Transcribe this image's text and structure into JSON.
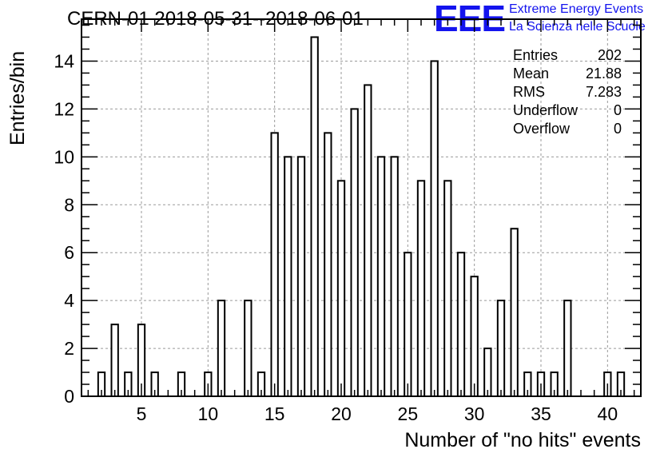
{
  "chart_data": {
    "type": "bar",
    "title": "CERN-01 2018-05-31--2018-06-01",
    "xlabel": "Number of \"no hits\" events",
    "ylabel": "Entries/bin",
    "xlim": [
      0.5,
      42.5
    ],
    "ylim": [
      0,
      15.75
    ],
    "x_ticks": [
      5,
      10,
      15,
      20,
      25,
      30,
      35,
      40
    ],
    "y_ticks": [
      0,
      2,
      4,
      6,
      8,
      10,
      12,
      14
    ],
    "bins": [
      {
        "x": 2,
        "value": 1
      },
      {
        "x": 3,
        "value": 3
      },
      {
        "x": 4,
        "value": 1
      },
      {
        "x": 5,
        "value": 3
      },
      {
        "x": 6,
        "value": 1
      },
      {
        "x": 8,
        "value": 1
      },
      {
        "x": 10,
        "value": 1
      },
      {
        "x": 11,
        "value": 4
      },
      {
        "x": 13,
        "value": 4
      },
      {
        "x": 14,
        "value": 1
      },
      {
        "x": 15,
        "value": 11
      },
      {
        "x": 16,
        "value": 10
      },
      {
        "x": 17,
        "value": 10
      },
      {
        "x": 18,
        "value": 15
      },
      {
        "x": 19,
        "value": 11
      },
      {
        "x": 20,
        "value": 9
      },
      {
        "x": 21,
        "value": 12
      },
      {
        "x": 22,
        "value": 13
      },
      {
        "x": 23,
        "value": 10
      },
      {
        "x": 24,
        "value": 10
      },
      {
        "x": 25,
        "value": 6
      },
      {
        "x": 26,
        "value": 9
      },
      {
        "x": 27,
        "value": 14
      },
      {
        "x": 28,
        "value": 9
      },
      {
        "x": 29,
        "value": 6
      },
      {
        "x": 30,
        "value": 5
      },
      {
        "x": 31,
        "value": 2
      },
      {
        "x": 32,
        "value": 4
      },
      {
        "x": 33,
        "value": 7
      },
      {
        "x": 34,
        "value": 1
      },
      {
        "x": 35,
        "value": 1
      },
      {
        "x": 36,
        "value": 1
      },
      {
        "x": 37,
        "value": 4
      },
      {
        "x": 40,
        "value": 1
      },
      {
        "x": 41,
        "value": 1
      }
    ],
    "grid": true,
    "bar_fill": "#ffffff",
    "bar_stroke": "#000000",
    "stats": [
      {
        "label": "Entries",
        "value": "202"
      },
      {
        "label": "Mean",
        "value": "21.88"
      },
      {
        "label": "RMS",
        "value": "7.283"
      },
      {
        "label": "Underflow",
        "value": "0"
      },
      {
        "label": "Overflow",
        "value": "0"
      }
    ]
  },
  "logo": {
    "mark": "EEE",
    "line1": "Extreme Energy Events",
    "line2": "La Scienza nelle Scuole",
    "color": "#1414ee"
  }
}
